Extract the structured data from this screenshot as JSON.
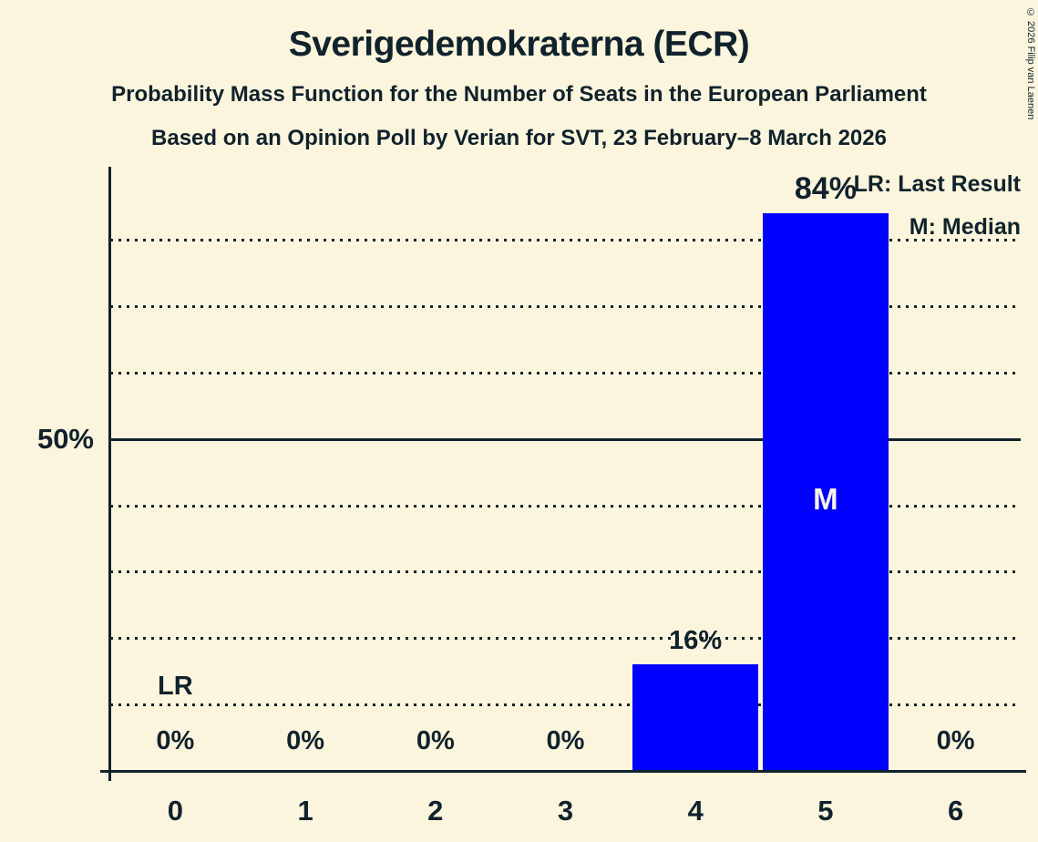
{
  "header": {
    "title": "Sverigedemokraterna (ECR)",
    "subtitle1": "Probability Mass Function for the Number of Seats in the European Parliament",
    "subtitle2": "Based on an Opinion Poll by Verian for SVT, 23 February–8 March 2026"
  },
  "legend": {
    "last_result": "LR: Last Result",
    "median": "M: Median"
  },
  "copyright": "© 2026 Filip van Laenen",
  "colors": {
    "background": "#FCF5DD",
    "bar": "#0000FF",
    "text": "#10222C",
    "bar_marker_text": "#F7F3E4"
  },
  "y_axis": {
    "tick_label": "50%",
    "tick_value": 50
  },
  "chart_data": {
    "type": "bar",
    "title": "Sverigedemokraterna (ECR)",
    "categories": [
      "0",
      "1",
      "2",
      "3",
      "4",
      "5",
      "6"
    ],
    "values": [
      0,
      0,
      0,
      0,
      16,
      84,
      0
    ],
    "value_labels": [
      "0%",
      "0%",
      "0%",
      "0%",
      "16%",
      "84%",
      "0%"
    ],
    "xlabel": "",
    "ylabel": "",
    "ylim": [
      0,
      91
    ],
    "gridlines_pct": [
      10,
      20,
      30,
      40,
      50,
      60,
      70,
      80
    ],
    "solid_gridline_pct": 50,
    "grid": "horizontal-dotted",
    "legend_position": "top-right",
    "markers": {
      "last_result_index": 0,
      "last_result_label": "LR",
      "median_index": 5,
      "median_label": "M"
    }
  }
}
